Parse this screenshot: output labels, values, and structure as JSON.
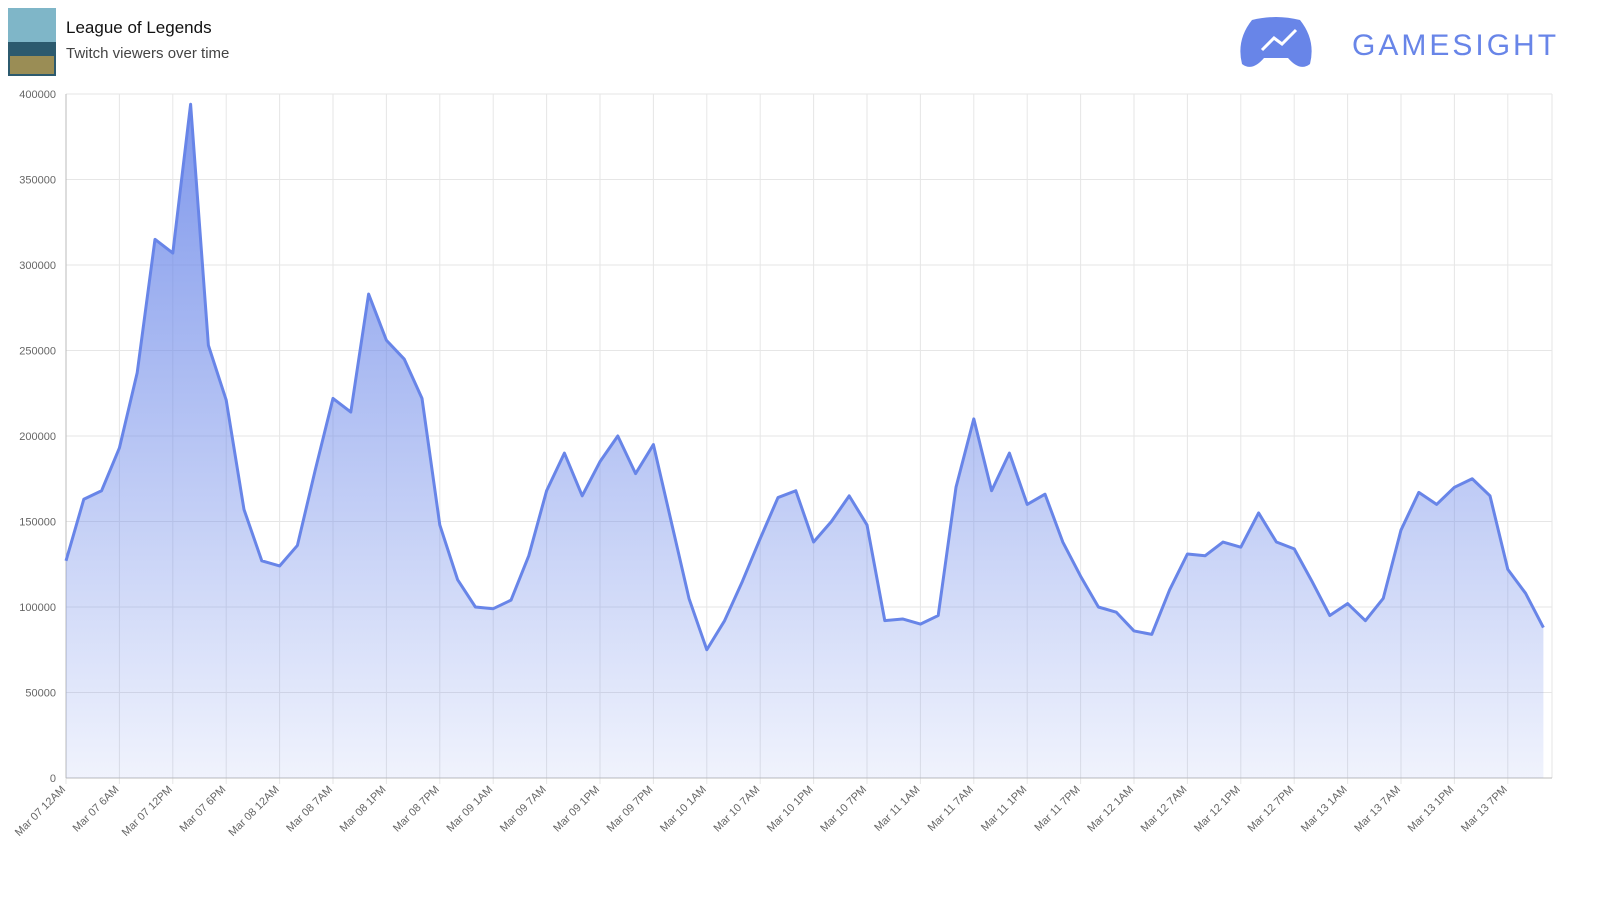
{
  "header": {
    "title": "League of Legends",
    "subtitle": "Twitch viewers over time",
    "brand": "GAMESIGHT"
  },
  "chart_data": {
    "type": "area",
    "color": "#6885e8",
    "grid": true,
    "categories": [
      "Mar 07 12AM",
      null,
      null,
      "Mar 07 6AM",
      null,
      null,
      "Mar 07 12PM",
      null,
      null,
      "Mar 07 6PM",
      null,
      null,
      "Mar 08 12AM",
      null,
      null,
      "Mar 08 7AM",
      null,
      null,
      "Mar 08 1PM",
      null,
      null,
      "Mar 08 7PM",
      null,
      null,
      "Mar 09 1AM",
      null,
      null,
      "Mar 09 7AM",
      null,
      null,
      "Mar 09 1PM",
      null,
      null,
      "Mar 09 7PM",
      null,
      null,
      "Mar 10 1AM",
      null,
      null,
      "Mar 10 7AM",
      null,
      null,
      "Mar 10 1PM",
      null,
      null,
      "Mar 10 7PM",
      null,
      null,
      "Mar 11 1AM",
      null,
      null,
      "Mar 11 7AM",
      null,
      null,
      "Mar 11 1PM",
      null,
      null,
      "Mar 11 7PM",
      null,
      null,
      "Mar 12 1AM",
      null,
      null,
      "Mar 12 7AM",
      null,
      null,
      "Mar 12 1PM",
      null,
      null,
      "Mar 12 7PM",
      null,
      null,
      "Mar 13 1AM",
      null,
      null,
      "Mar 13 7AM",
      null,
      null,
      "Mar 13 1PM",
      null,
      null,
      "Mar 13 7PM",
      null,
      null
    ],
    "values": [
      127000,
      163000,
      168000,
      193000,
      237000,
      315000,
      307000,
      394000,
      253000,
      221000,
      157000,
      127000,
      124000,
      136000,
      180000,
      222000,
      214000,
      283000,
      256000,
      245000,
      222000,
      148000,
      116000,
      100000,
      99000,
      104000,
      130000,
      168000,
      190000,
      165000,
      185000,
      200000,
      178000,
      195000,
      150000,
      105000,
      75000,
      92000,
      115000,
      140000,
      164000,
      168000,
      138000,
      150000,
      165000,
      148000,
      92000,
      93000,
      90000,
      95000,
      170000,
      210000,
      168000,
      190000,
      160000,
      166000,
      138000,
      118000,
      100000,
      97000,
      86000,
      84000,
      110000,
      131000,
      130000,
      138000,
      135000,
      155000,
      138000,
      134000,
      115000,
      95000,
      102000,
      92000,
      105000,
      145000,
      167000,
      160000,
      170000,
      175000,
      165000,
      122000,
      108000,
      88000
    ],
    "ylim": [
      0,
      400000
    ],
    "yticks": [
      0,
      50000,
      100000,
      150000,
      200000,
      250000,
      300000,
      350000,
      400000
    ]
  }
}
